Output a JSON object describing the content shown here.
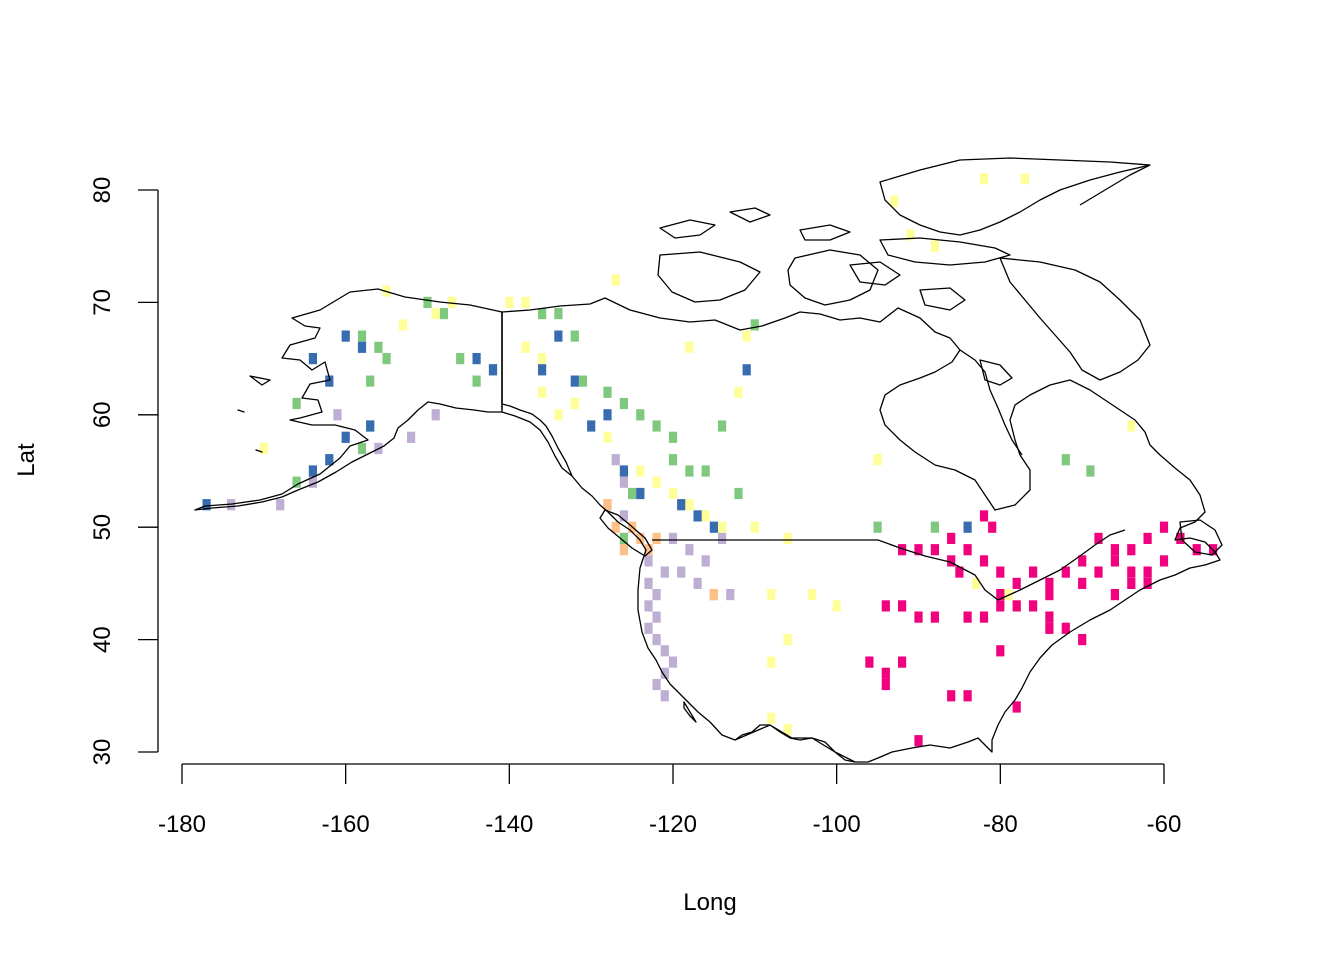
{
  "chart_data": {
    "type": "scatter",
    "subtype": "gridded-map",
    "xlabel": "Long",
    "ylabel": "Lat",
    "xlim": [
      -180,
      -60
    ],
    "ylim": [
      30,
      80
    ],
    "x_ticks": [
      -180,
      -160,
      -140,
      -120,
      -100,
      -80,
      -60
    ],
    "x_tick_labels": [
      "-180",
      "-160",
      "-140",
      "-120",
      "-100",
      "-80",
      "-60"
    ],
    "y_ticks": [
      30,
      40,
      50,
      60,
      70,
      80
    ],
    "y_tick_labels": [
      "30",
      "40",
      "50",
      "60",
      "70",
      "80"
    ],
    "grid": false,
    "cell_size_degrees": 1,
    "series": [
      {
        "color": "#7fc97f",
        "points": [
          [
            -166,
            54
          ],
          [
            -158,
            67
          ],
          [
            -156,
            66
          ],
          [
            -155,
            65
          ],
          [
            -157,
            63
          ],
          [
            -150,
            70
          ],
          [
            -148,
            69
          ],
          [
            -146,
            65
          ],
          [
            -144,
            63
          ],
          [
            -142,
            64
          ],
          [
            -136,
            69
          ],
          [
            -134,
            69
          ],
          [
            -132,
            67
          ],
          [
            -131,
            63
          ],
          [
            -128,
            62
          ],
          [
            -126,
            61
          ],
          [
            -124,
            60
          ],
          [
            -122,
            59
          ],
          [
            -120,
            58
          ],
          [
            -118,
            55
          ],
          [
            -116,
            55
          ],
          [
            -114,
            59
          ],
          [
            -112,
            53
          ],
          [
            -110,
            68
          ],
          [
            -95,
            50
          ],
          [
            -88,
            50
          ],
          [
            -72,
            56
          ],
          [
            -69,
            55
          ],
          [
            -62,
            46
          ],
          [
            -58,
            49
          ],
          [
            -120,
            56
          ],
          [
            -125,
            53
          ],
          [
            -126,
            49
          ],
          [
            -157,
            59
          ],
          [
            -158,
            57
          ],
          [
            -166,
            61
          ]
        ]
      },
      {
        "color": "#beaed4",
        "points": [
          [
            -161,
            60
          ],
          [
            -164,
            54
          ],
          [
            -168,
            52
          ],
          [
            -174,
            52
          ],
          [
            -156,
            57
          ],
          [
            -152,
            58
          ],
          [
            -149,
            60
          ],
          [
            -127,
            56
          ],
          [
            -126,
            54
          ],
          [
            -128,
            52
          ],
          [
            -126,
            51
          ],
          [
            -124,
            53
          ],
          [
            -120,
            49
          ],
          [
            -118,
            48
          ],
          [
            -116,
            47
          ],
          [
            -114,
            49
          ],
          [
            -123,
            47
          ],
          [
            -121,
            46
          ],
          [
            -119,
            46
          ],
          [
            -117,
            45
          ],
          [
            -115,
            44
          ],
          [
            -113,
            44
          ],
          [
            -123,
            45
          ],
          [
            -122,
            44
          ],
          [
            -123,
            43
          ],
          [
            -122,
            42
          ],
          [
            -123,
            41
          ],
          [
            -122,
            40
          ],
          [
            -121,
            39
          ],
          [
            -120,
            38
          ],
          [
            -121,
            37
          ],
          [
            -122,
            36
          ],
          [
            -121,
            35
          ]
        ]
      },
      {
        "color": "#fdc086",
        "points": [
          [
            -128,
            52
          ],
          [
            -127,
            50
          ],
          [
            -125,
            50
          ],
          [
            -124,
            49
          ],
          [
            -122,
            49
          ],
          [
            -126,
            48
          ],
          [
            -123,
            48
          ],
          [
            -115,
            44
          ]
        ]
      },
      {
        "color": "#ffff99",
        "points": [
          [
            -155,
            71
          ],
          [
            -153,
            68
          ],
          [
            -149,
            69
          ],
          [
            -147,
            70
          ],
          [
            -140,
            70
          ],
          [
            -138,
            70
          ],
          [
            -138,
            66
          ],
          [
            -136,
            65
          ],
          [
            -136,
            62
          ],
          [
            -134,
            60
          ],
          [
            -132,
            61
          ],
          [
            -130,
            59
          ],
          [
            -128,
            58
          ],
          [
            -126,
            55
          ],
          [
            -124,
            55
          ],
          [
            -122,
            54
          ],
          [
            -120,
            53
          ],
          [
            -118,
            52
          ],
          [
            -116,
            51
          ],
          [
            -114,
            50
          ],
          [
            -110,
            50
          ],
          [
            -106,
            49
          ],
          [
            -108,
            44
          ],
          [
            -103,
            44
          ],
          [
            -100,
            43
          ],
          [
            -106,
            40
          ],
          [
            -108,
            38
          ],
          [
            -108,
            33
          ],
          [
            -106,
            32
          ],
          [
            -111,
            67
          ],
          [
            -118,
            66
          ],
          [
            -112,
            62
          ],
          [
            -95,
            56
          ],
          [
            -93,
            79
          ],
          [
            -91,
            76
          ],
          [
            -88,
            75
          ],
          [
            -82,
            81
          ],
          [
            -77,
            81
          ],
          [
            -64,
            59
          ],
          [
            -83,
            45
          ],
          [
            -79,
            44
          ],
          [
            -78,
            43
          ],
          [
            -170,
            57
          ],
          [
            -127,
            72
          ]
        ]
      },
      {
        "color": "#386cb0",
        "points": [
          [
            -177,
            52
          ],
          [
            -164,
            55
          ],
          [
            -162,
            56
          ],
          [
            -160,
            58
          ],
          [
            -157,
            59
          ],
          [
            -158,
            66
          ],
          [
            -160,
            67
          ],
          [
            -164,
            65
          ],
          [
            -162,
            63
          ],
          [
            -144,
            65
          ],
          [
            -142,
            64
          ],
          [
            -136,
            64
          ],
          [
            -134,
            67
          ],
          [
            -132,
            63
          ],
          [
            -130,
            59
          ],
          [
            -128,
            60
          ],
          [
            -126,
            55
          ],
          [
            -124,
            53
          ],
          [
            -119,
            52
          ],
          [
            -117,
            51
          ],
          [
            -115,
            50
          ],
          [
            -111,
            64
          ],
          [
            -84,
            50
          ]
        ]
      },
      {
        "color": "#f0027f",
        "points": [
          [
            -82,
            51
          ],
          [
            -81,
            50
          ],
          [
            -86,
            49
          ],
          [
            -84,
            48
          ],
          [
            -82,
            47
          ],
          [
            -80,
            46
          ],
          [
            -78,
            45
          ],
          [
            -76,
            46
          ],
          [
            -74,
            45
          ],
          [
            -72,
            46
          ],
          [
            -70,
            47
          ],
          [
            -68,
            46
          ],
          [
            -66,
            47
          ],
          [
            -64,
            48
          ],
          [
            -62,
            49
          ],
          [
            -60,
            50
          ],
          [
            -58,
            49
          ],
          [
            -56,
            48
          ],
          [
            -54,
            48
          ],
          [
            -70,
            45
          ],
          [
            -66,
            44
          ],
          [
            -64,
            45
          ],
          [
            -62,
            46
          ],
          [
            -60,
            47
          ],
          [
            -74,
            44
          ],
          [
            -76,
            43
          ],
          [
            -78,
            43
          ],
          [
            -80,
            43
          ],
          [
            -74,
            42
          ],
          [
            -74,
            41
          ],
          [
            -72,
            41
          ],
          [
            -70,
            40
          ],
          [
            -90,
            48
          ],
          [
            -88,
            48
          ],
          [
            -94,
            43
          ],
          [
            -92,
            43
          ],
          [
            -90,
            42
          ],
          [
            -88,
            42
          ],
          [
            -84,
            42
          ],
          [
            -82,
            42
          ],
          [
            -80,
            39
          ],
          [
            -78,
            34
          ],
          [
            -84,
            35
          ],
          [
            -86,
            35
          ],
          [
            -96,
            38
          ],
          [
            -94,
            37
          ],
          [
            -92,
            38
          ],
          [
            -94,
            36
          ],
          [
            -90,
            31
          ],
          [
            -92,
            48
          ],
          [
            -86,
            47
          ],
          [
            -85,
            46
          ],
          [
            -80,
            44
          ],
          [
            -68,
            49
          ],
          [
            -66,
            48
          ],
          [
            -62,
            45
          ],
          [
            -64,
            46
          ]
        ]
      }
    ]
  }
}
